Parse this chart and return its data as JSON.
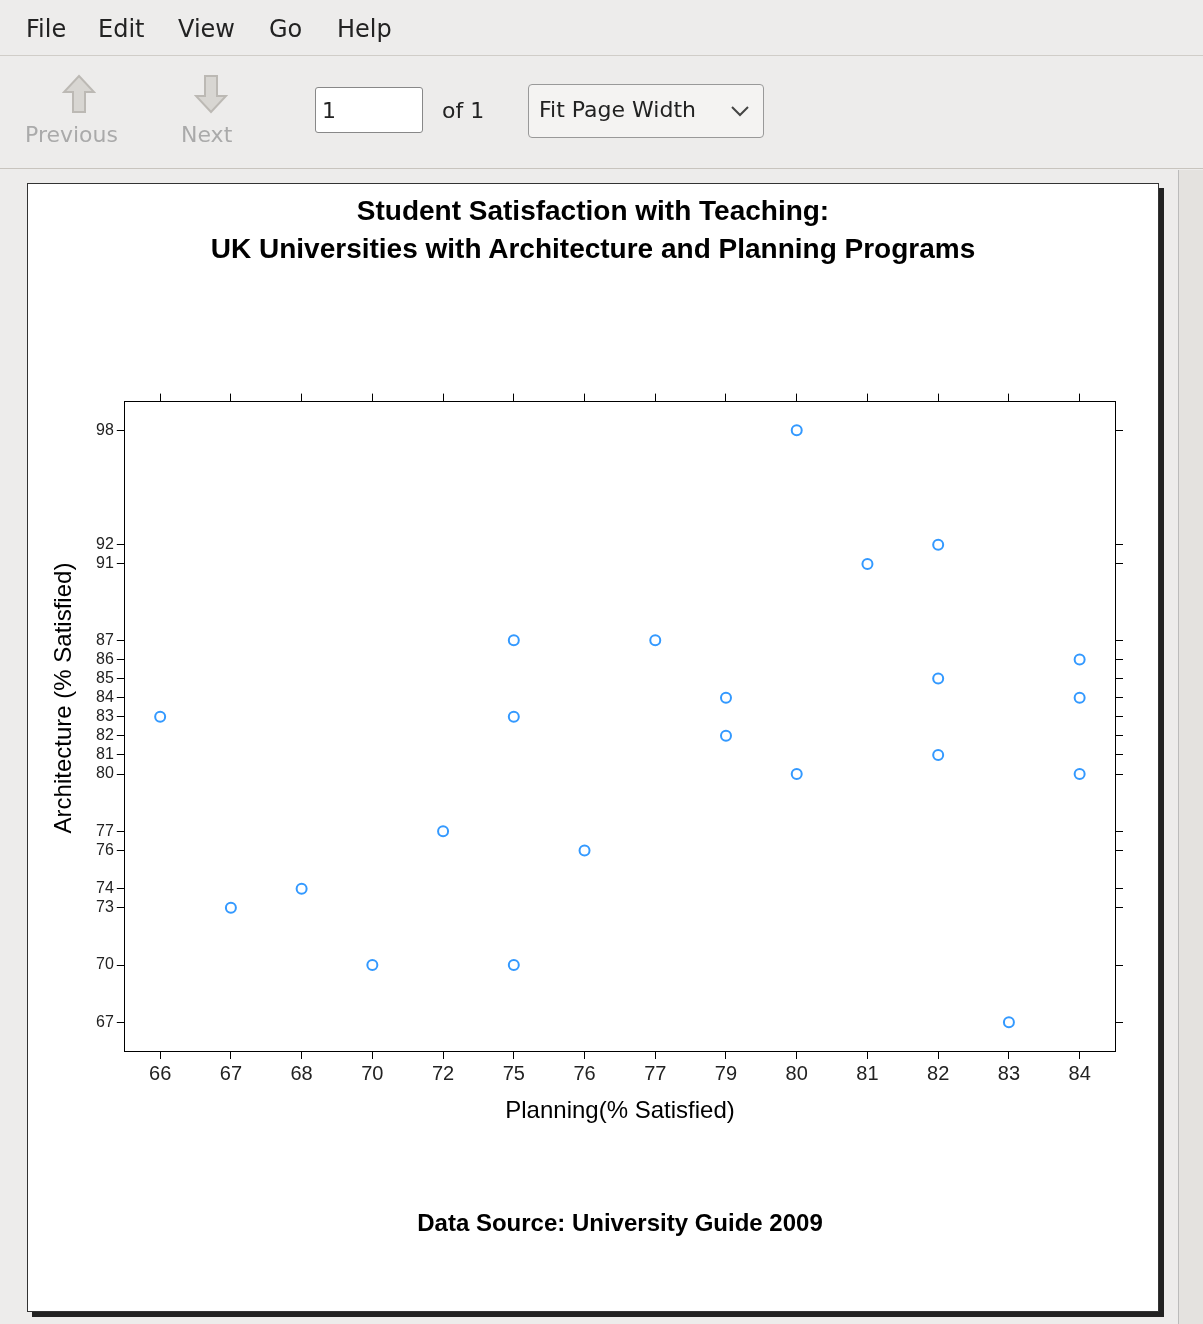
{
  "chart_data": [
    {
      "type": "other",
      "annotations": [
        "File",
        "Edit",
        "View",
        "Go",
        "Help",
        "Previous",
        "Next",
        "1",
        "of 1",
        "Fit Page Width"
      ]
    },
    {
      "type": "scatter",
      "title": "Student Satisfaction with Teaching:\nUK Universities with Architecture and Planning Programs",
      "xlabel": "Planning(% Satisfied)",
      "ylabel": "Architecture (% Satisfied)",
      "categories": [
        "66",
        "67",
        "68",
        "70",
        "72",
        "75",
        "76",
        "77",
        "79",
        "80",
        "81",
        "82",
        "83",
        "84"
      ],
      "ylim": [
        65.5,
        99.5
      ],
      "yticks": [
        67,
        70,
        73,
        74,
        76,
        77,
        80,
        81,
        82,
        83,
        84,
        85,
        86,
        87,
        91,
        92,
        98
      ],
      "marker": "circle",
      "series": [
        {
          "color": "#3399ff",
          "x": [
            "80",
            "82",
            "81",
            "75",
            "77",
            "84",
            "82",
            "79",
            "84",
            "66",
            "75",
            "79",
            "82",
            "80",
            "84",
            "72",
            "76",
            "68",
            "67",
            "70",
            "75",
            "83"
          ],
          "values": [
            98,
            92,
            91,
            87,
            87,
            86,
            85,
            84,
            84,
            83,
            83,
            82,
            81,
            80,
            80,
            77,
            76,
            74,
            73,
            70,
            70,
            67
          ]
        }
      ],
      "annotations": [
        "Data Source: University Guide 2009"
      ]
    }
  ]
}
